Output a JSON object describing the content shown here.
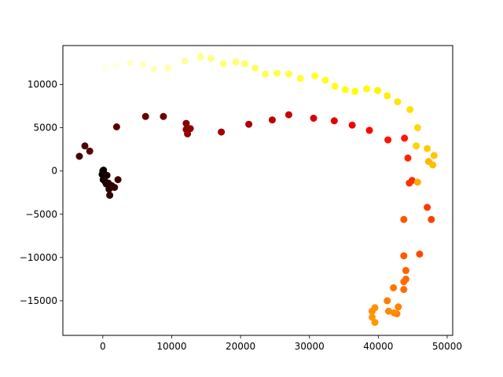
{
  "chart_data": {
    "type": "scatter",
    "title": "",
    "xlabel": "",
    "ylabel": "",
    "xlim": [
      -5800,
      50800
    ],
    "ylim": [
      -19000,
      14500
    ],
    "x_ticks": [
      0,
      10000,
      20000,
      30000,
      40000,
      50000
    ],
    "y_ticks": [
      -15000,
      -10000,
      -5000,
      0,
      5000,
      10000
    ],
    "grid": false,
    "legend": "none",
    "colormap": "hot",
    "points": [
      {
        "x": 0,
        "y": 0,
        "c": 0.0
      },
      {
        "x": 100,
        "y": -200,
        "c": 0.01
      },
      {
        "x": -100,
        "y": -400,
        "c": 0.01
      },
      {
        "x": 200,
        "y": -700,
        "c": 0.02
      },
      {
        "x": 50,
        "y": -1000,
        "c": 0.03
      },
      {
        "x": 300,
        "y": -1200,
        "c": 0.03
      },
      {
        "x": 500,
        "y": -1500,
        "c": 0.04
      },
      {
        "x": 100,
        "y": 100,
        "c": 0.02
      },
      {
        "x": 600,
        "y": -500,
        "c": 0.04
      },
      {
        "x": 800,
        "y": -1400,
        "c": 0.05
      },
      {
        "x": 900,
        "y": -2100,
        "c": 0.06
      },
      {
        "x": 1000,
        "y": -2800,
        "c": 0.07
      },
      {
        "x": 1300,
        "y": -1700,
        "c": 0.06
      },
      {
        "x": 1700,
        "y": -1900,
        "c": 0.08
      },
      {
        "x": 2200,
        "y": -1000,
        "c": 0.09
      },
      {
        "x": -3400,
        "y": 1700,
        "c": 0.1
      },
      {
        "x": -2600,
        "y": 2900,
        "c": 0.11
      },
      {
        "x": -1900,
        "y": 2300,
        "c": 0.12
      },
      {
        "x": 2000,
        "y": 5100,
        "c": 0.13
      },
      {
        "x": 6200,
        "y": 6300,
        "c": 0.15
      },
      {
        "x": 8800,
        "y": 6300,
        "c": 0.16
      },
      {
        "x": 12100,
        "y": 5500,
        "c": 0.19
      },
      {
        "x": 12100,
        "y": 4800,
        "c": 0.2
      },
      {
        "x": 12700,
        "y": 4900,
        "c": 0.21
      },
      {
        "x": 12300,
        "y": 4300,
        "c": 0.21
      },
      {
        "x": 17200,
        "y": 4500,
        "c": 0.23
      },
      {
        "x": 21200,
        "y": 5400,
        "c": 0.25
      },
      {
        "x": 24600,
        "y": 5900,
        "c": 0.27
      },
      {
        "x": 27000,
        "y": 6500,
        "c": 0.29
      },
      {
        "x": 30600,
        "y": 6100,
        "c": 0.31
      },
      {
        "x": 33600,
        "y": 5800,
        "c": 0.33
      },
      {
        "x": 36200,
        "y": 5300,
        "c": 0.35
      },
      {
        "x": 38700,
        "y": 4700,
        "c": 0.37
      },
      {
        "x": 41400,
        "y": 3600,
        "c": 0.39
      },
      {
        "x": 43800,
        "y": 3800,
        "c": 0.4
      },
      {
        "x": 44300,
        "y": 1500,
        "c": 0.42
      },
      {
        "x": 44900,
        "y": -1100,
        "c": 0.43
      },
      {
        "x": 44500,
        "y": -1400,
        "c": 0.44
      },
      {
        "x": 47100,
        "y": -4200,
        "c": 0.45
      },
      {
        "x": 47700,
        "y": -5600,
        "c": 0.46
      },
      {
        "x": 46000,
        "y": -9600,
        "c": 0.47
      },
      {
        "x": 43700,
        "y": -5600,
        "c": 0.49
      },
      {
        "x": 43700,
        "y": -9800,
        "c": 0.5
      },
      {
        "x": 44000,
        "y": -11500,
        "c": 0.51
      },
      {
        "x": 44000,
        "y": -12500,
        "c": 0.52
      },
      {
        "x": 43700,
        "y": -12800,
        "c": 0.53
      },
      {
        "x": 43700,
        "y": -13700,
        "c": 0.53
      },
      {
        "x": 42200,
        "y": -13500,
        "c": 0.54
      },
      {
        "x": 41300,
        "y": -15000,
        "c": 0.55
      },
      {
        "x": 42900,
        "y": -15700,
        "c": 0.56
      },
      {
        "x": 42700,
        "y": -16500,
        "c": 0.56
      },
      {
        "x": 42300,
        "y": -16400,
        "c": 0.57
      },
      {
        "x": 41500,
        "y": -16200,
        "c": 0.57
      },
      {
        "x": 39500,
        "y": -15800,
        "c": 0.58
      },
      {
        "x": 39100,
        "y": -16200,
        "c": 0.58
      },
      {
        "x": 39100,
        "y": -16900,
        "c": 0.59
      },
      {
        "x": 39500,
        "y": -17500,
        "c": 0.59
      },
      {
        "x": 45700,
        "y": -1300,
        "c": 0.62
      },
      {
        "x": 47300,
        "y": 1100,
        "c": 0.64
      },
      {
        "x": 47900,
        "y": 700,
        "c": 0.65
      },
      {
        "x": 48100,
        "y": 1800,
        "c": 0.66
      },
      {
        "x": 47100,
        "y": 2600,
        "c": 0.67
      },
      {
        "x": 45500,
        "y": 2900,
        "c": 0.68
      },
      {
        "x": 45700,
        "y": 5000,
        "c": 0.69
      },
      {
        "x": 44600,
        "y": 7100,
        "c": 0.7
      },
      {
        "x": 42800,
        "y": 8000,
        "c": 0.71
      },
      {
        "x": 41300,
        "y": 8700,
        "c": 0.72
      },
      {
        "x": 39900,
        "y": 9300,
        "c": 0.73
      },
      {
        "x": 38300,
        "y": 9500,
        "c": 0.74
      },
      {
        "x": 36600,
        "y": 9200,
        "c": 0.75
      },
      {
        "x": 35200,
        "y": 9400,
        "c": 0.76
      },
      {
        "x": 33700,
        "y": 9800,
        "c": 0.77
      },
      {
        "x": 32300,
        "y": 10500,
        "c": 0.78
      },
      {
        "x": 30800,
        "y": 11000,
        "c": 0.79
      },
      {
        "x": 28700,
        "y": 10700,
        "c": 0.8
      },
      {
        "x": 27000,
        "y": 11200,
        "c": 0.81
      },
      {
        "x": 25300,
        "y": 11300,
        "c": 0.82
      },
      {
        "x": 23600,
        "y": 11200,
        "c": 0.83
      },
      {
        "x": 22100,
        "y": 11900,
        "c": 0.84
      },
      {
        "x": 20600,
        "y": 12400,
        "c": 0.85
      },
      {
        "x": 19300,
        "y": 12600,
        "c": 0.86
      },
      {
        "x": 17500,
        "y": 12400,
        "c": 0.87
      },
      {
        "x": 15700,
        "y": 13000,
        "c": 0.88
      },
      {
        "x": 14200,
        "y": 13200,
        "c": 0.89
      },
      {
        "x": 11900,
        "y": 12700,
        "c": 0.9
      },
      {
        "x": 9500,
        "y": 11900,
        "c": 0.92
      },
      {
        "x": 7400,
        "y": 11800,
        "c": 0.93
      },
      {
        "x": 5800,
        "y": 12300,
        "c": 0.94
      },
      {
        "x": 4000,
        "y": 12500,
        "c": 0.95
      },
      {
        "x": 2000,
        "y": 12200,
        "c": 0.97
      },
      {
        "x": 400,
        "y": 12000,
        "c": 0.98
      }
    ]
  }
}
